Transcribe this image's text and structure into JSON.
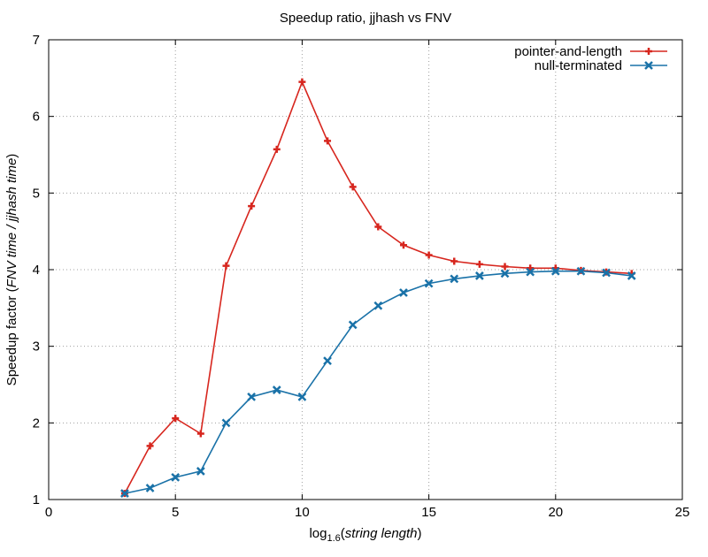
{
  "chart_data": {
    "type": "line",
    "title": "Speedup ratio, jjhash vs FNV",
    "xlabel": {
      "prefix": "log",
      "subscript": "1.6",
      "paren_open": "(",
      "italic": "string length",
      "paren_close": ")"
    },
    "ylabel": {
      "plain": "Speedup factor (",
      "italic": "FNV time / jjhash time",
      "close": ")"
    },
    "xlim": [
      0,
      25
    ],
    "ylim": [
      1,
      7
    ],
    "xticks": [
      "0",
      "5",
      "10",
      "15",
      "20",
      "25"
    ],
    "yticks": [
      "1",
      "2",
      "3",
      "4",
      "5",
      "6",
      "7"
    ],
    "grid": true,
    "legend_position": "top-right",
    "series": [
      {
        "name": "pointer-and-length",
        "color": "#d7261e",
        "marker": "plus",
        "x": [
          3,
          4,
          5,
          6,
          7,
          8,
          9,
          10,
          11,
          12,
          13,
          14,
          15,
          16,
          17,
          18,
          19,
          20,
          21,
          22,
          23
        ],
        "y": [
          1.08,
          1.7,
          2.06,
          1.86,
          4.05,
          4.83,
          5.57,
          6.45,
          5.68,
          5.08,
          4.56,
          4.32,
          4.19,
          4.11,
          4.07,
          4.04,
          4.02,
          4.02,
          3.99,
          3.97,
          3.95
        ]
      },
      {
        "name": "null-terminated",
        "color": "#1a72a8",
        "marker": "cross",
        "x": [
          3,
          4,
          5,
          6,
          7,
          8,
          9,
          10,
          11,
          12,
          13,
          14,
          15,
          16,
          17,
          18,
          19,
          20,
          21,
          22,
          23
        ],
        "y": [
          1.08,
          1.15,
          1.29,
          1.37,
          2.0,
          2.34,
          2.43,
          2.34,
          2.81,
          3.28,
          3.53,
          3.7,
          3.82,
          3.88,
          3.92,
          3.95,
          3.97,
          3.98,
          3.98,
          3.96,
          3.92
        ]
      }
    ]
  }
}
